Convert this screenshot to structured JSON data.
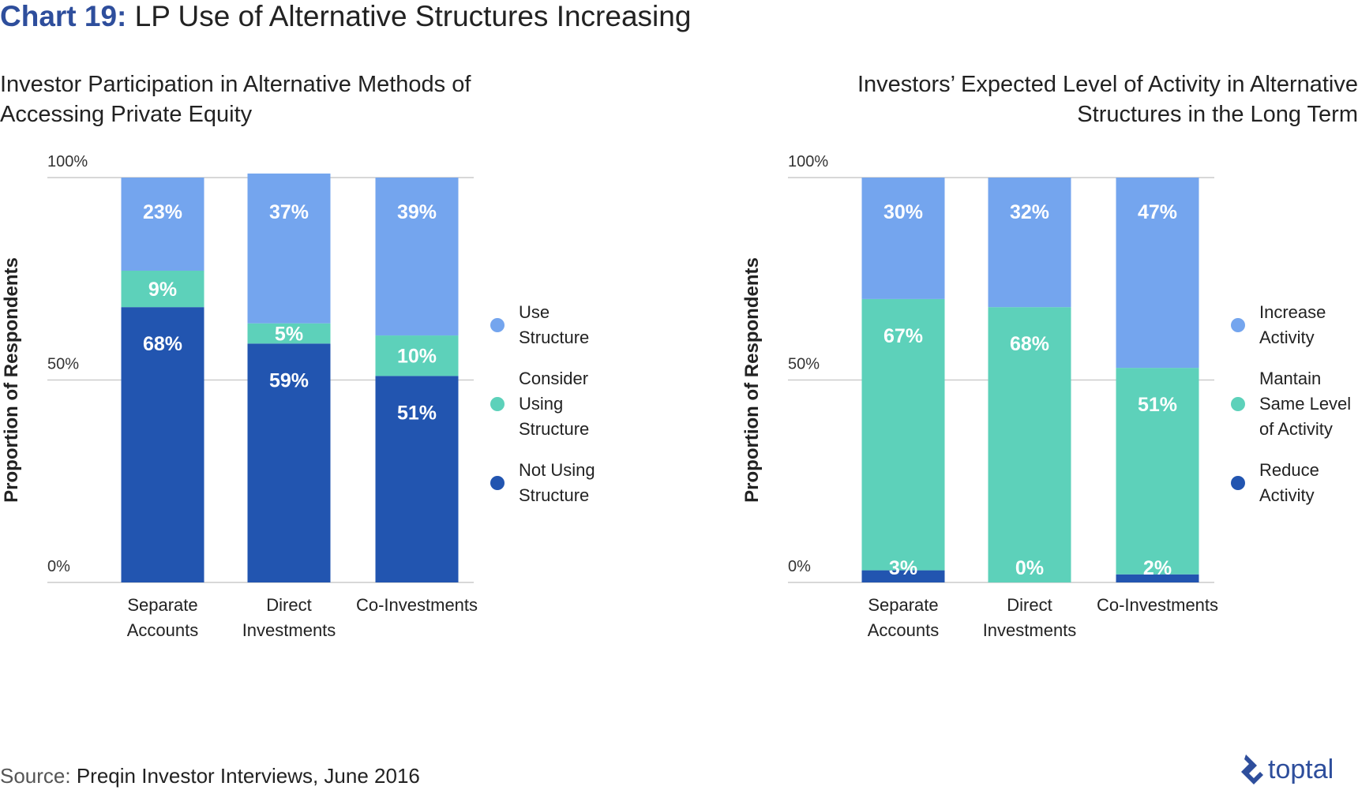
{
  "title": {
    "prefix": "Chart 19:",
    "text": "LP Use of Alternative Structures Increasing"
  },
  "source": {
    "label": "Source:",
    "text": "Preqin Investor Interviews, June 2016"
  },
  "brand": {
    "name": "toptal",
    "icon": "toptal-logo-icon"
  },
  "colors": {
    "light_blue": "#74a5ee",
    "teal": "#5dd1ba",
    "dark_blue": "#2255b0",
    "grid": "#cccccc"
  },
  "chart_data": [
    {
      "type": "bar",
      "stacked": true,
      "title": [
        "Investor Participation in Alternative Methods of",
        "Accessing Private Equity"
      ],
      "ylabel": "Proportion of Respondents",
      "yticks": [
        "0%",
        "50%",
        "100%"
      ],
      "ylim": [
        0,
        100
      ],
      "categories": [
        [
          "Separate",
          "Accounts"
        ],
        [
          "Direct",
          "Investments"
        ],
        [
          "Co-Investments"
        ]
      ],
      "series": [
        {
          "name": [
            "Not Using",
            "Structure"
          ],
          "color": "#2255b0",
          "values": [
            68,
            59,
            51
          ],
          "labels": [
            "68%",
            "59%",
            "51%"
          ]
        },
        {
          "name": [
            "Consider",
            "Using",
            "Structure"
          ],
          "color": "#5dd1ba",
          "values": [
            9,
            5,
            10
          ],
          "labels": [
            "9%",
            "5%",
            "10%"
          ]
        },
        {
          "name": [
            "Use",
            "Structure"
          ],
          "color": "#74a5ee",
          "values": [
            23,
            37,
            39
          ],
          "labels": [
            "23%",
            "37%",
            "39%"
          ]
        }
      ],
      "legend_order": [
        2,
        1,
        0
      ],
      "legend": "right"
    },
    {
      "type": "bar",
      "stacked": true,
      "title": [
        "Investors’ Expected Level of Activity in Alternative",
        "Structures in the Long Term"
      ],
      "ylabel": "Proportion of Respondents",
      "yticks": [
        "0%",
        "50%",
        "100%"
      ],
      "ylim": [
        0,
        100
      ],
      "categories": [
        [
          "Separate",
          "Accounts"
        ],
        [
          "Direct",
          "Investments"
        ],
        [
          "Co-Investments"
        ]
      ],
      "series": [
        {
          "name": [
            "Reduce",
            "Activity"
          ],
          "color": "#2255b0",
          "values": [
            3,
            0,
            2
          ],
          "labels": [
            "3%",
            "0%",
            "2%"
          ]
        },
        {
          "name": [
            "Mantain",
            "Same Level",
            "of Activity"
          ],
          "color": "#5dd1ba",
          "values": [
            67,
            68,
            51
          ],
          "labels": [
            "67%",
            "68%",
            "51%"
          ]
        },
        {
          "name": [
            "Increase",
            "Activity"
          ],
          "color": "#74a5ee",
          "values": [
            30,
            32,
            47
          ],
          "labels": [
            "30%",
            "32%",
            "47%"
          ]
        }
      ],
      "legend_order": [
        2,
        1,
        0
      ],
      "legend": "right"
    }
  ]
}
